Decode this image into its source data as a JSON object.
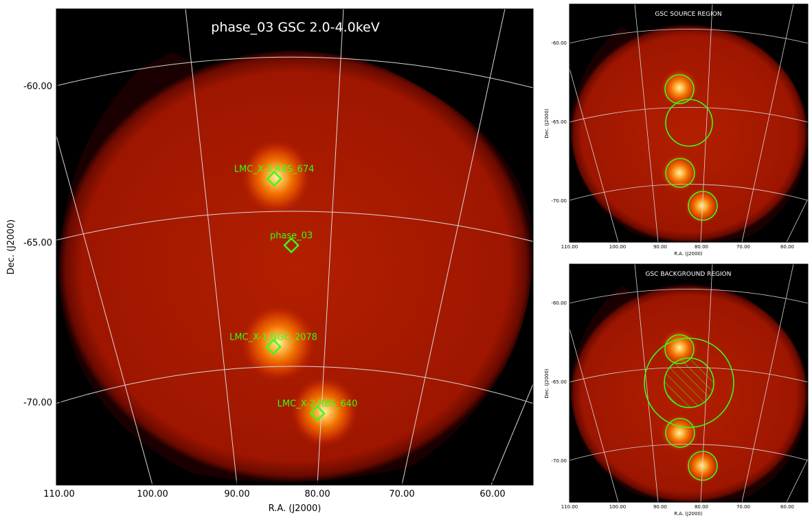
{
  "main_panel": {
    "title": "phase_03 GSC 2.0-4.0keV",
    "xlabel": "R.A. (J2000)",
    "ylabel": "Dec. (J2000)",
    "ra_ticks": [
      "110.00",
      "100.00",
      "90.00",
      "80.00",
      "70.00",
      "60.00"
    ],
    "dec_ticks": [
      "-60.00",
      "-65.00",
      "-70.00"
    ],
    "sources": [
      {
        "label": "LMC_X-3,RBS_674",
        "ra": 85.3,
        "dec": -63.0
      },
      {
        "label": "phase_03",
        "ra": 83.1,
        "dec": -65.1
      },
      {
        "label": "LMC_X-1,NGC_2078",
        "ra": 85.0,
        "dec": -68.3
      },
      {
        "label": "LMC_X-2,RBS_640",
        "ra": 79.6,
        "dec": -70.4
      }
    ]
  },
  "source_panel": {
    "title": "GSC SOURCE REGION",
    "xlabel": "R.A. (J2000)",
    "ylabel": "Dec. (J2000)",
    "ra_ticks": [
      "110.00",
      "100.00",
      "90.00",
      "80.00",
      "70.00",
      "60.00"
    ],
    "dec_ticks": [
      "-60.00",
      "-65.00",
      "-70.00"
    ]
  },
  "background_panel": {
    "title": "GSC BACKGROUND REGION",
    "xlabel": "R.A. (J2000)",
    "ylabel": "Dec. (J2000)",
    "ra_ticks": [
      "110.00",
      "100.00",
      "90.00",
      "80.00",
      "70.00",
      "60.00"
    ],
    "dec_ticks": [
      "-60.00",
      "-65.00",
      "-70.00"
    ]
  },
  "colors": {
    "background": "#000000",
    "region": "#39ff14",
    "grid": "#d8d8d8"
  }
}
